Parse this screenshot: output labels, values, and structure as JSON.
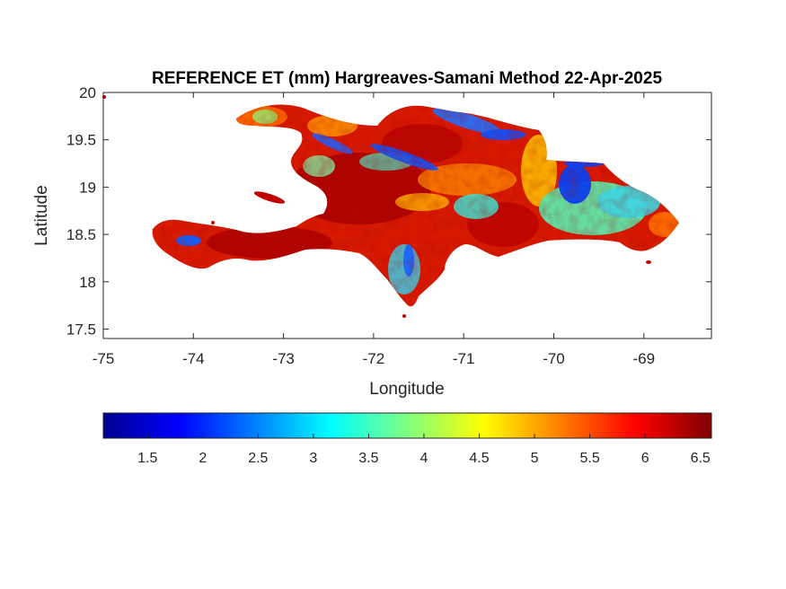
{
  "chart_data": {
    "type": "heatmap",
    "title": "REFERENCE ET (mm) Hargreaves-Samani Method  22-Apr-2025",
    "xlabel": "Longitude",
    "ylabel": "Latitude",
    "xlim": [
      -75,
      -68.25
    ],
    "ylim": [
      17.4,
      20
    ],
    "x_ticks": [
      "-75",
      "-74",
      "-73",
      "-72",
      "-71",
      "-70",
      "-69"
    ],
    "y_ticks": [
      "20",
      "19.5",
      "19",
      "18.5",
      "18",
      "17.5"
    ],
    "colorbar": {
      "colormap": "jet",
      "range": [
        1.1,
        6.6
      ],
      "ticks": [
        "1.5",
        "2",
        "2.5",
        "3",
        "3.5",
        "4",
        "4.5",
        "5",
        "5.5",
        "6",
        "6.5"
      ]
    },
    "colors": {
      "low": "#00008f",
      "mid": "#ffff00",
      "high": "#800000",
      "dominant": "#d40000"
    }
  }
}
